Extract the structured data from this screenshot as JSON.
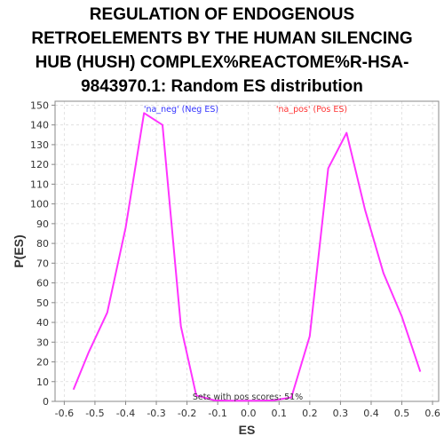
{
  "chart_data": {
    "type": "line",
    "title_lines": [
      "REGULATION OF ENDOGENOUS",
      "RETROELEMENTS BY THE HUMAN SILENCING",
      "HUB (HUSH) COMPLEX%REACTOME%R-HSA-",
      "9843970.1: Random ES distribution"
    ],
    "xlabel": "ES",
    "ylabel": "P(ES)",
    "xlim": [
      -0.63,
      0.62
    ],
    "ylim": [
      0,
      152
    ],
    "x_ticks": [
      -0.6,
      -0.5,
      -0.4,
      -0.3,
      -0.2,
      -0.1,
      0.0,
      0.1,
      0.2,
      0.3,
      0.4,
      0.5,
      0.6
    ],
    "x_tick_labels": [
      "-0.6",
      "-0.5",
      "-0.4",
      "-0.3",
      "-0.2",
      "-0.1",
      "0.0",
      "0.1",
      "0.2",
      "0.3",
      "0.4",
      "0.5",
      "0.6"
    ],
    "y_ticks": [
      0,
      10,
      20,
      30,
      40,
      50,
      60,
      70,
      80,
      90,
      100,
      110,
      120,
      130,
      140,
      150
    ],
    "y_tick_labels": [
      "0",
      "10",
      "20",
      "30",
      "40",
      "50",
      "60",
      "70",
      "80",
      "90",
      "100",
      "110",
      "120",
      "130",
      "140",
      "150"
    ],
    "grid": true,
    "series": [
      {
        "color": "#ff33ff",
        "x": [
          -0.57,
          -0.52,
          -0.46,
          -0.4,
          -0.34,
          -0.28,
          -0.22,
          -0.17,
          -0.11,
          -0.05,
          0.02,
          0.08,
          0.14,
          0.2,
          0.26,
          0.32,
          0.38,
          0.44,
          0.5,
          0.56
        ],
        "y": [
          6,
          25,
          45,
          88,
          146,
          140,
          38,
          3,
          0.5,
          0.3,
          0.3,
          0.5,
          2,
          33,
          118,
          136,
          97,
          65,
          43,
          15
        ]
      }
    ],
    "annotations": [
      {
        "text": "'na_neg' (Neg ES)",
        "color": "#3333ff"
      },
      {
        "text": "'na_pos' (Pos ES)",
        "color": "#ff3333"
      },
      {
        "text": "Sets with pos scores: 51%",
        "color": "#333333"
      }
    ]
  }
}
